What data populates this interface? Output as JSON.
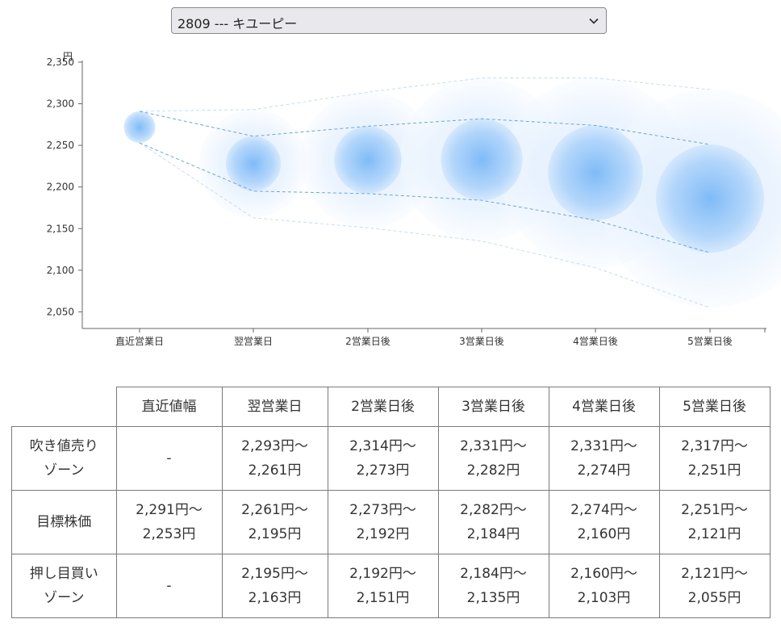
{
  "selector": {
    "selected": "2809 --- キユーピー"
  },
  "chart_data": {
    "type": "bubble",
    "ylabel": "円",
    "ylim": [
      2030,
      2350
    ],
    "y_ticks": [
      "2,050",
      "2,100",
      "2,150",
      "2,200",
      "2,250",
      "2,300",
      "2,350"
    ],
    "y_tick_values": [
      2050,
      2100,
      2150,
      2200,
      2250,
      2300,
      2350
    ],
    "categories": [
      "直近営業日",
      "翌営業日",
      "2営業日後",
      "3営業日後",
      "4営業日後",
      "5営業日後"
    ],
    "center": [
      2271,
      2228,
      2232,
      2233,
      2217,
      2186
    ],
    "inner_band": [
      [
        2291,
        2253
      ],
      [
        2261,
        2195
      ],
      [
        2273,
        2192
      ],
      [
        2282,
        2184
      ],
      [
        2274,
        2160
      ],
      [
        2251,
        2121
      ]
    ],
    "outer_band": [
      [
        2291,
        2253
      ],
      [
        2293,
        2163
      ],
      [
        2314,
        2151
      ],
      [
        2331,
        2135
      ],
      [
        2331,
        2103
      ],
      [
        2317,
        2055
      ]
    ],
    "color": "#4a9ef5"
  },
  "table": {
    "headers": [
      "",
      "直近値幅",
      "翌営業日",
      "2営業日後",
      "3営業日後",
      "4営業日後",
      "5営業日後"
    ],
    "rows": [
      {
        "label": [
          "吹き値売り",
          "ゾーン"
        ],
        "cells": [
          [
            "-"
          ],
          [
            "2,293円～",
            "2,261円"
          ],
          [
            "2,314円～",
            "2,273円"
          ],
          [
            "2,331円～",
            "2,282円"
          ],
          [
            "2,331円～",
            "2,274円"
          ],
          [
            "2,317円～",
            "2,251円"
          ]
        ]
      },
      {
        "label": [
          "目標株価"
        ],
        "cells": [
          [
            "2,291円～",
            "2,253円"
          ],
          [
            "2,261円～",
            "2,195円"
          ],
          [
            "2,273円～",
            "2,192円"
          ],
          [
            "2,282円～",
            "2,184円"
          ],
          [
            "2,274円～",
            "2,160円"
          ],
          [
            "2,251円～",
            "2,121円"
          ]
        ]
      },
      {
        "label": [
          "押し目買い",
          "ゾーン"
        ],
        "cells": [
          [
            "-"
          ],
          [
            "2,195円～",
            "2,163円"
          ],
          [
            "2,192円～",
            "2,151円"
          ],
          [
            "2,184円～",
            "2,135円"
          ],
          [
            "2,160円～",
            "2,103円"
          ],
          [
            "2,121円～",
            "2,055円"
          ]
        ]
      }
    ]
  }
}
